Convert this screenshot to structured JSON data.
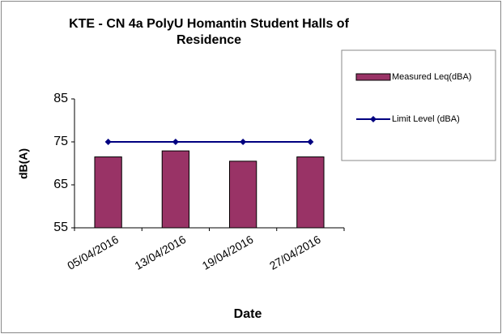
{
  "chart_data": {
    "type": "bar",
    "title": "KTE - CN 4a  PolyU Homantin Student Halls of Residence",
    "x_label": "Date",
    "y_label": "dB(A)",
    "categories": [
      "05/04/2016",
      "13/04/2016",
      "19/04/2016",
      "27/04/2016"
    ],
    "series": [
      {
        "name": "Measured Leq(dBA)",
        "type": "bar",
        "color": "#993366",
        "values": [
          71.5,
          72.9,
          70.5,
          71.5
        ]
      },
      {
        "name": "Limit Level (dBA)",
        "type": "line",
        "color": "#000080",
        "values": [
          75,
          75,
          75,
          75
        ]
      }
    ],
    "ylim": [
      55,
      85
    ],
    "yticks": [
      55,
      65,
      75,
      85
    ],
    "legend": "right"
  }
}
